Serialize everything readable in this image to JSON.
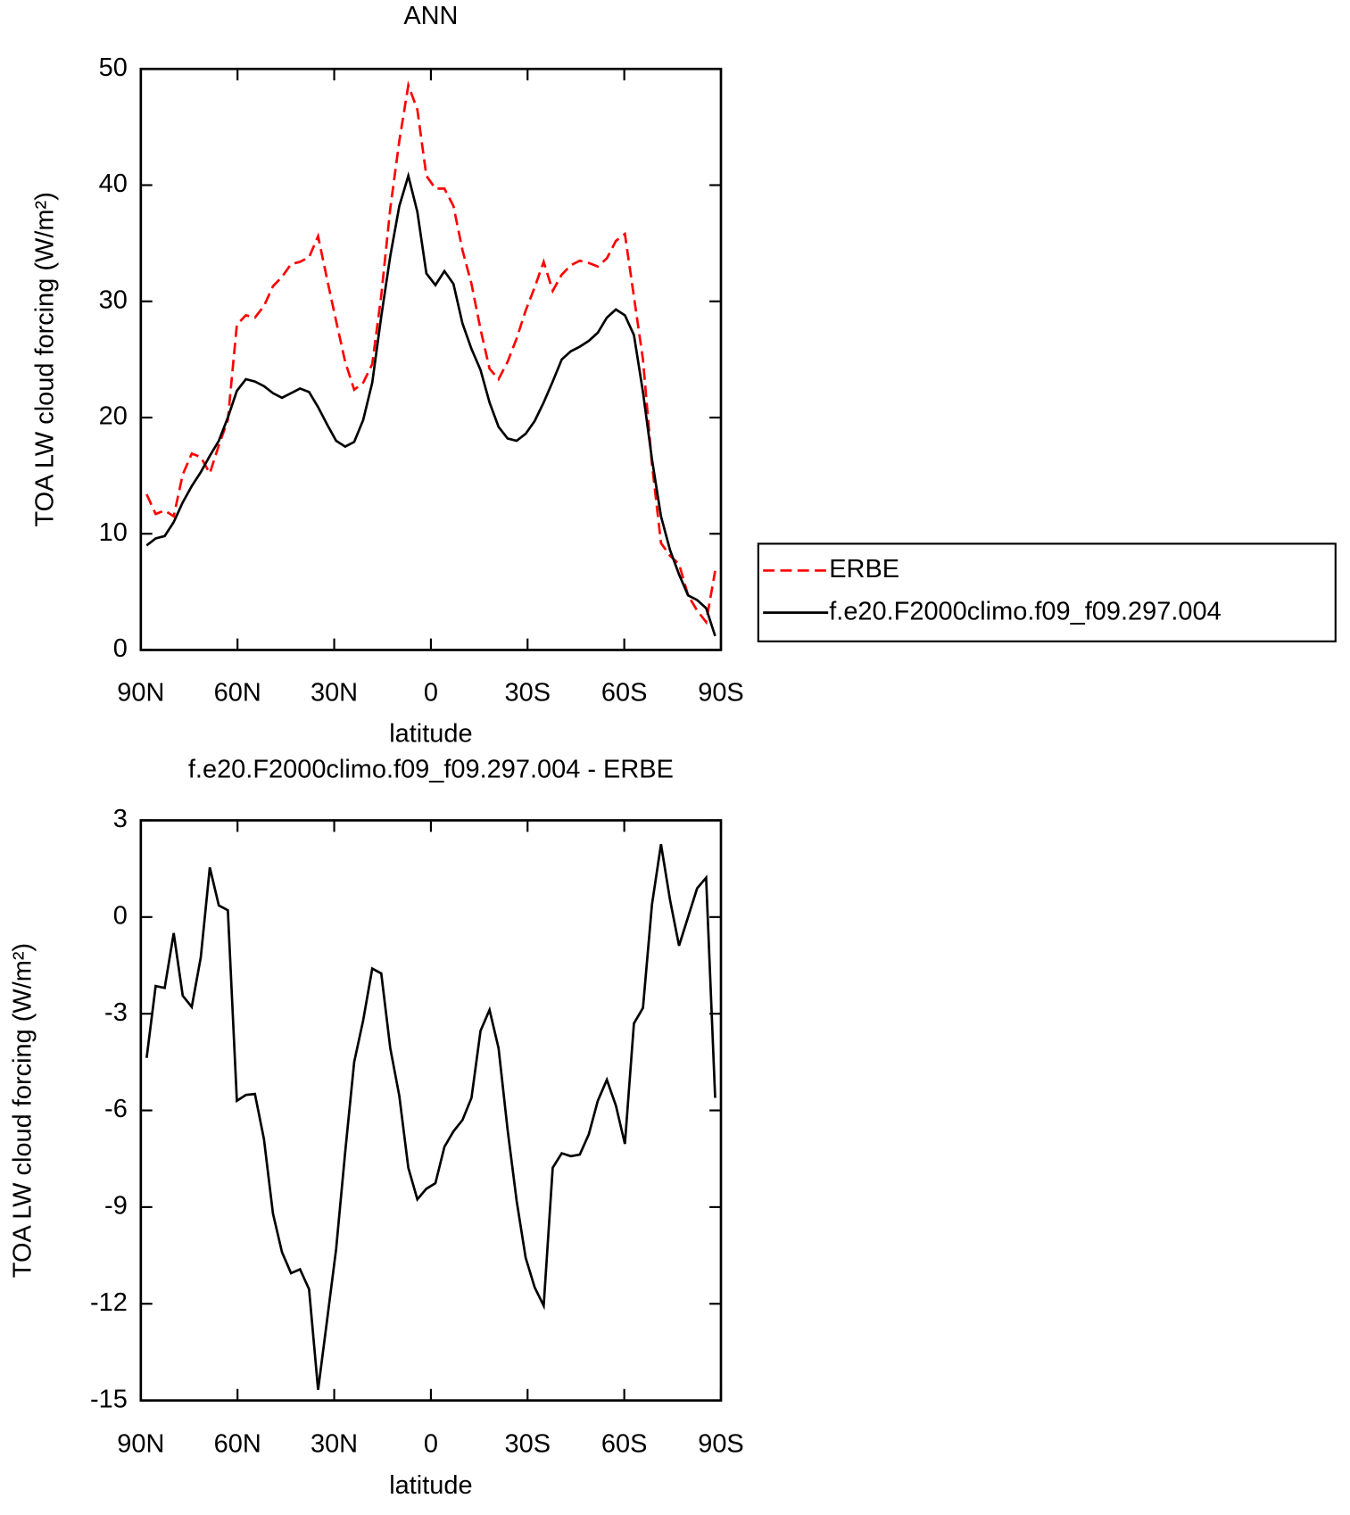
{
  "chart_data": [
    {
      "type": "line",
      "title": "ANN",
      "xlabel": "latitude",
      "ylabel": "TOA LW cloud forcing (W/m²)",
      "x": [
        88.2,
        85.4,
        82.6,
        79.8,
        77,
        74.2,
        71.4,
        68.6,
        65.8,
        63,
        60.2,
        57.4,
        54.6,
        51.8,
        49,
        46.2,
        43.4,
        40.6,
        37.8,
        35,
        32.2,
        29.4,
        26.6,
        23.8,
        21,
        18.2,
        15.4,
        12.6,
        9.8,
        7,
        4.2,
        1.4,
        -1.4,
        -4.2,
        -7,
        -9.8,
        -12.6,
        -15.4,
        -18.2,
        -21,
        -23.8,
        -26.6,
        -29.4,
        -32.2,
        -35,
        -37.8,
        -40.6,
        -43.4,
        -46.2,
        -49,
        -51.8,
        -54.6,
        -57.4,
        -60.2,
        -63,
        -65.8,
        -68.6,
        -71.4,
        -74.2,
        -77,
        -79.8,
        -82.6,
        -85.4,
        -88.2
      ],
      "series": [
        {
          "name": "ERBE",
          "color": "#ff0000",
          "style": "dashed",
          "values": [
            13.4,
            11.7,
            12.0,
            11.5,
            15.1,
            16.9,
            16.6,
            15.2,
            17.6,
            19.8,
            28.0,
            28.8,
            28.6,
            29.6,
            31.3,
            32.1,
            33.2,
            33.4,
            33.8,
            35.6,
            31.9,
            28.3,
            24.8,
            22.4,
            23.0,
            24.6,
            30.5,
            38.0,
            43.8,
            48.6,
            46.5,
            40.8,
            39.7,
            39.7,
            38.2,
            34.4,
            31.5,
            27.6,
            24.2,
            23.3,
            24.8,
            26.8,
            29.2,
            31.2,
            33.4,
            30.9,
            32.3,
            33.1,
            33.5,
            33.3,
            33.0,
            33.7,
            35.2,
            35.8,
            30.4,
            25.0,
            16.0,
            9.2,
            8.1,
            7.4,
            4.7,
            3.4,
            2.4,
            6.8
          ]
        },
        {
          "name": "f.e20.F2000climo.f09_f09.297.004",
          "color": "#000000",
          "style": "solid",
          "values": [
            9.0,
            9.6,
            9.8,
            11.0,
            12.7,
            14.1,
            15.3,
            16.7,
            18.0,
            20.0,
            22.3,
            23.3,
            23.1,
            22.7,
            22.1,
            21.7,
            22.1,
            22.5,
            22.2,
            20.9,
            19.4,
            18.0,
            17.5,
            17.9,
            19.8,
            23.0,
            28.7,
            33.9,
            38.2,
            40.8,
            37.7,
            32.4,
            31.4,
            32.6,
            31.5,
            28.1,
            25.9,
            24.1,
            21.3,
            19.2,
            18.2,
            18.0,
            18.6,
            19.7,
            21.3,
            23.1,
            25.0,
            25.7,
            26.1,
            26.6,
            27.3,
            28.6,
            29.3,
            28.8,
            27.1,
            22.2,
            16.4,
            11.5,
            8.6,
            6.5,
            4.7,
            4.3,
            3.6,
            1.2
          ]
        }
      ],
      "xlim": [
        90,
        -90
      ],
      "ylim": [
        0,
        50
      ],
      "xticks": [
        {
          "value": 90,
          "label": "90N"
        },
        {
          "value": 60,
          "label": "60N"
        },
        {
          "value": 30,
          "label": "30N"
        },
        0,
        {
          "value": -30,
          "label": "30S"
        },
        {
          "value": -60,
          "label": "60S"
        },
        {
          "value": -90,
          "label": "90S"
        }
      ],
      "yticks": [
        0,
        10,
        20,
        30,
        40,
        50
      ],
      "legend": "right"
    },
    {
      "type": "line",
      "title": "f.e20.F2000climo.f09_f09.297.004 - ERBE",
      "xlabel": "latitude",
      "ylabel": "TOA LW cloud forcing (W/m²)",
      "x": [
        88.2,
        85.4,
        82.6,
        79.8,
        77,
        74.2,
        71.4,
        68.6,
        65.8,
        63,
        60.2,
        57.4,
        54.6,
        51.8,
        49,
        46.2,
        43.4,
        40.6,
        37.8,
        35,
        32.2,
        29.4,
        26.6,
        23.8,
        21,
        18.2,
        15.4,
        12.6,
        9.8,
        7,
        4.2,
        1.4,
        -1.4,
        -4.2,
        -7,
        -9.8,
        -12.6,
        -15.4,
        -18.2,
        -21,
        -23.8,
        -26.6,
        -29.4,
        -32.2,
        -35,
        -37.8,
        -40.6,
        -43.4,
        -46.2,
        -49,
        -51.8,
        -54.6,
        -57.4,
        -60.2,
        -63,
        -65.8,
        -68.6,
        -71.4,
        -74.2,
        -77,
        -79.8,
        -82.6,
        -85.4,
        -88.2
      ],
      "values": [
        -4.37,
        -2.14,
        -2.2,
        -0.5,
        -2.44,
        -2.79,
        -1.25,
        1.54,
        0.36,
        0.21,
        -5.7,
        -5.52,
        -5.49,
        -6.89,
        -9.2,
        -10.4,
        -11.05,
        -10.93,
        -11.55,
        -14.67,
        -12.5,
        -10.3,
        -7.3,
        -4.5,
        -3.2,
        -1.6,
        -1.75,
        -4.07,
        -5.55,
        -7.78,
        -8.76,
        -8.43,
        -8.26,
        -7.13,
        -6.65,
        -6.3,
        -5.61,
        -3.53,
        -2.88,
        -4.07,
        -6.6,
        -8.8,
        -10.57,
        -11.49,
        -12.06,
        -7.78,
        -7.33,
        -7.42,
        -7.37,
        -6.74,
        -5.7,
        -5.05,
        -5.85,
        -7.04,
        -3.3,
        -2.82,
        0.39,
        2.26,
        0.53,
        -0.89,
        0,
        0.89,
        1.22,
        -5.61
      ],
      "color": "#000000",
      "xlim": [
        90,
        -90
      ],
      "ylim": [
        -15,
        3
      ],
      "xticks": [
        {
          "value": 90,
          "label": "90N"
        },
        {
          "value": 60,
          "label": "60N"
        },
        {
          "value": 30,
          "label": "30N"
        },
        0,
        {
          "value": -30,
          "label": "30S"
        },
        {
          "value": -60,
          "label": "60S"
        },
        {
          "value": -90,
          "label": "90S"
        }
      ],
      "yticks": [
        -15,
        -12,
        -9,
        -6,
        -3,
        0,
        3
      ]
    }
  ]
}
